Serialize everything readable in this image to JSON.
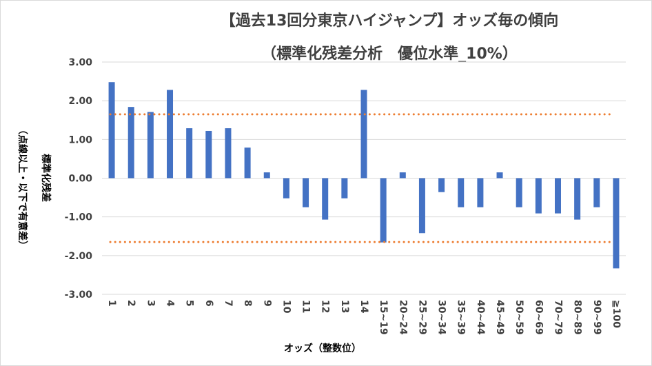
{
  "chart_data": {
    "type": "bar",
    "title": "【過去13回分東京ハイジャンプ】オッズ毎の傾向",
    "subtitle": "（標準化残差分析　優位水準_10%）",
    "xlabel": "オッズ（整数位）",
    "ylabel": "標準化残差",
    "ylabel_note": "（点線以上・以下で有意差）",
    "categories": [
      "1",
      "2",
      "3",
      "4",
      "5",
      "6",
      "7",
      "8",
      "9",
      "10",
      "11",
      "12",
      "13",
      "14",
      "15~19",
      "20~24",
      "25~29",
      "30~34",
      "35~39",
      "40~44",
      "45~49",
      "50~59",
      "60~69",
      "70~79",
      "80~89",
      "90~99",
      "≧100"
    ],
    "values": [
      2.48,
      1.84,
      1.71,
      2.28,
      1.29,
      1.22,
      1.29,
      0.79,
      0.15,
      -0.52,
      -0.75,
      -1.07,
      -0.52,
      2.28,
      -1.66,
      0.15,
      -1.42,
      -0.36,
      -0.75,
      -0.75,
      0.15,
      -0.75,
      -0.91,
      -0.91,
      -1.07,
      -0.75,
      -2.33
    ],
    "ylim": [
      -3,
      3
    ],
    "yticks": [
      "3.00",
      "2.00",
      "1.00",
      "0.00",
      "-1.00",
      "-2.00",
      "-3.00"
    ],
    "threshold_lines": [
      1.65,
      -1.65
    ],
    "colors": {
      "bar": "#4472c4",
      "threshold": "#ed7d31",
      "grid": "#d9d9d9"
    },
    "grid": true,
    "legend": "none"
  }
}
